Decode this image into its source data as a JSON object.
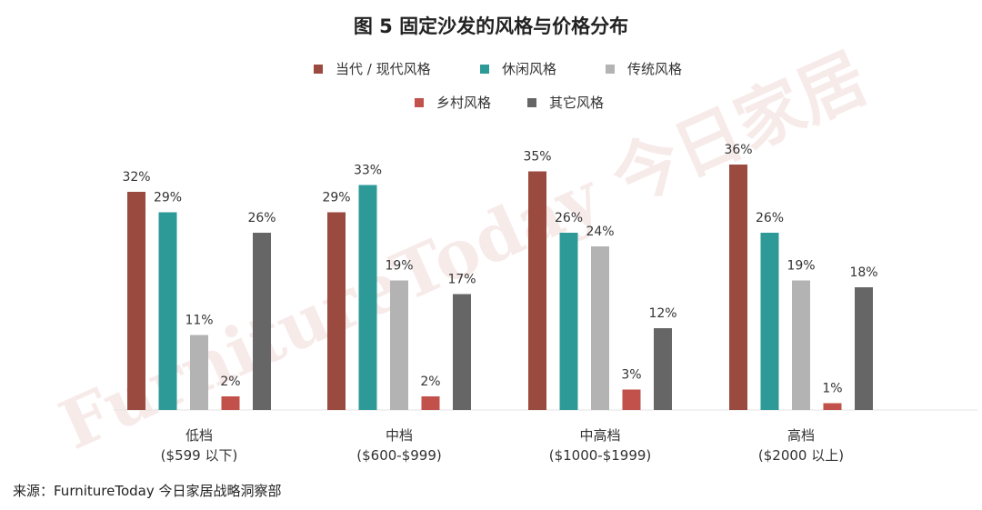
{
  "chart_data": {
    "type": "bar",
    "title": "图 5 固定沙发的风格与价格分布",
    "categories": [
      "低档\n($599 以下)",
      "中档\n($600-$999)",
      "中高档\n($1000-$1999)",
      "高档\n($2000 以上)"
    ],
    "series": [
      {
        "name": "当代 / 现代风格",
        "color": "#9a4a3f",
        "values": [
          32,
          29,
          35,
          36
        ]
      },
      {
        "name": "休闲风格",
        "color": "#2e9a98",
        "values": [
          29,
          33,
          26,
          26
        ]
      },
      {
        "name": "传统风格",
        "color": "#b3b3b3",
        "values": [
          11,
          19,
          24,
          19
        ]
      },
      {
        "name": "乡村风格",
        "color": "#c1514a",
        "values": [
          2,
          2,
          3,
          1
        ]
      },
      {
        "name": "其它风格",
        "color": "#666666",
        "values": [
          26,
          17,
          12,
          18
        ]
      }
    ],
    "value_suffix": "%",
    "ylim": [
      0,
      36
    ],
    "legend_position": "top",
    "grid": false
  },
  "watermark": "FurnitureToday 今日家居",
  "source_text": "来源：FurnitureToday 今日家居战略洞察部"
}
